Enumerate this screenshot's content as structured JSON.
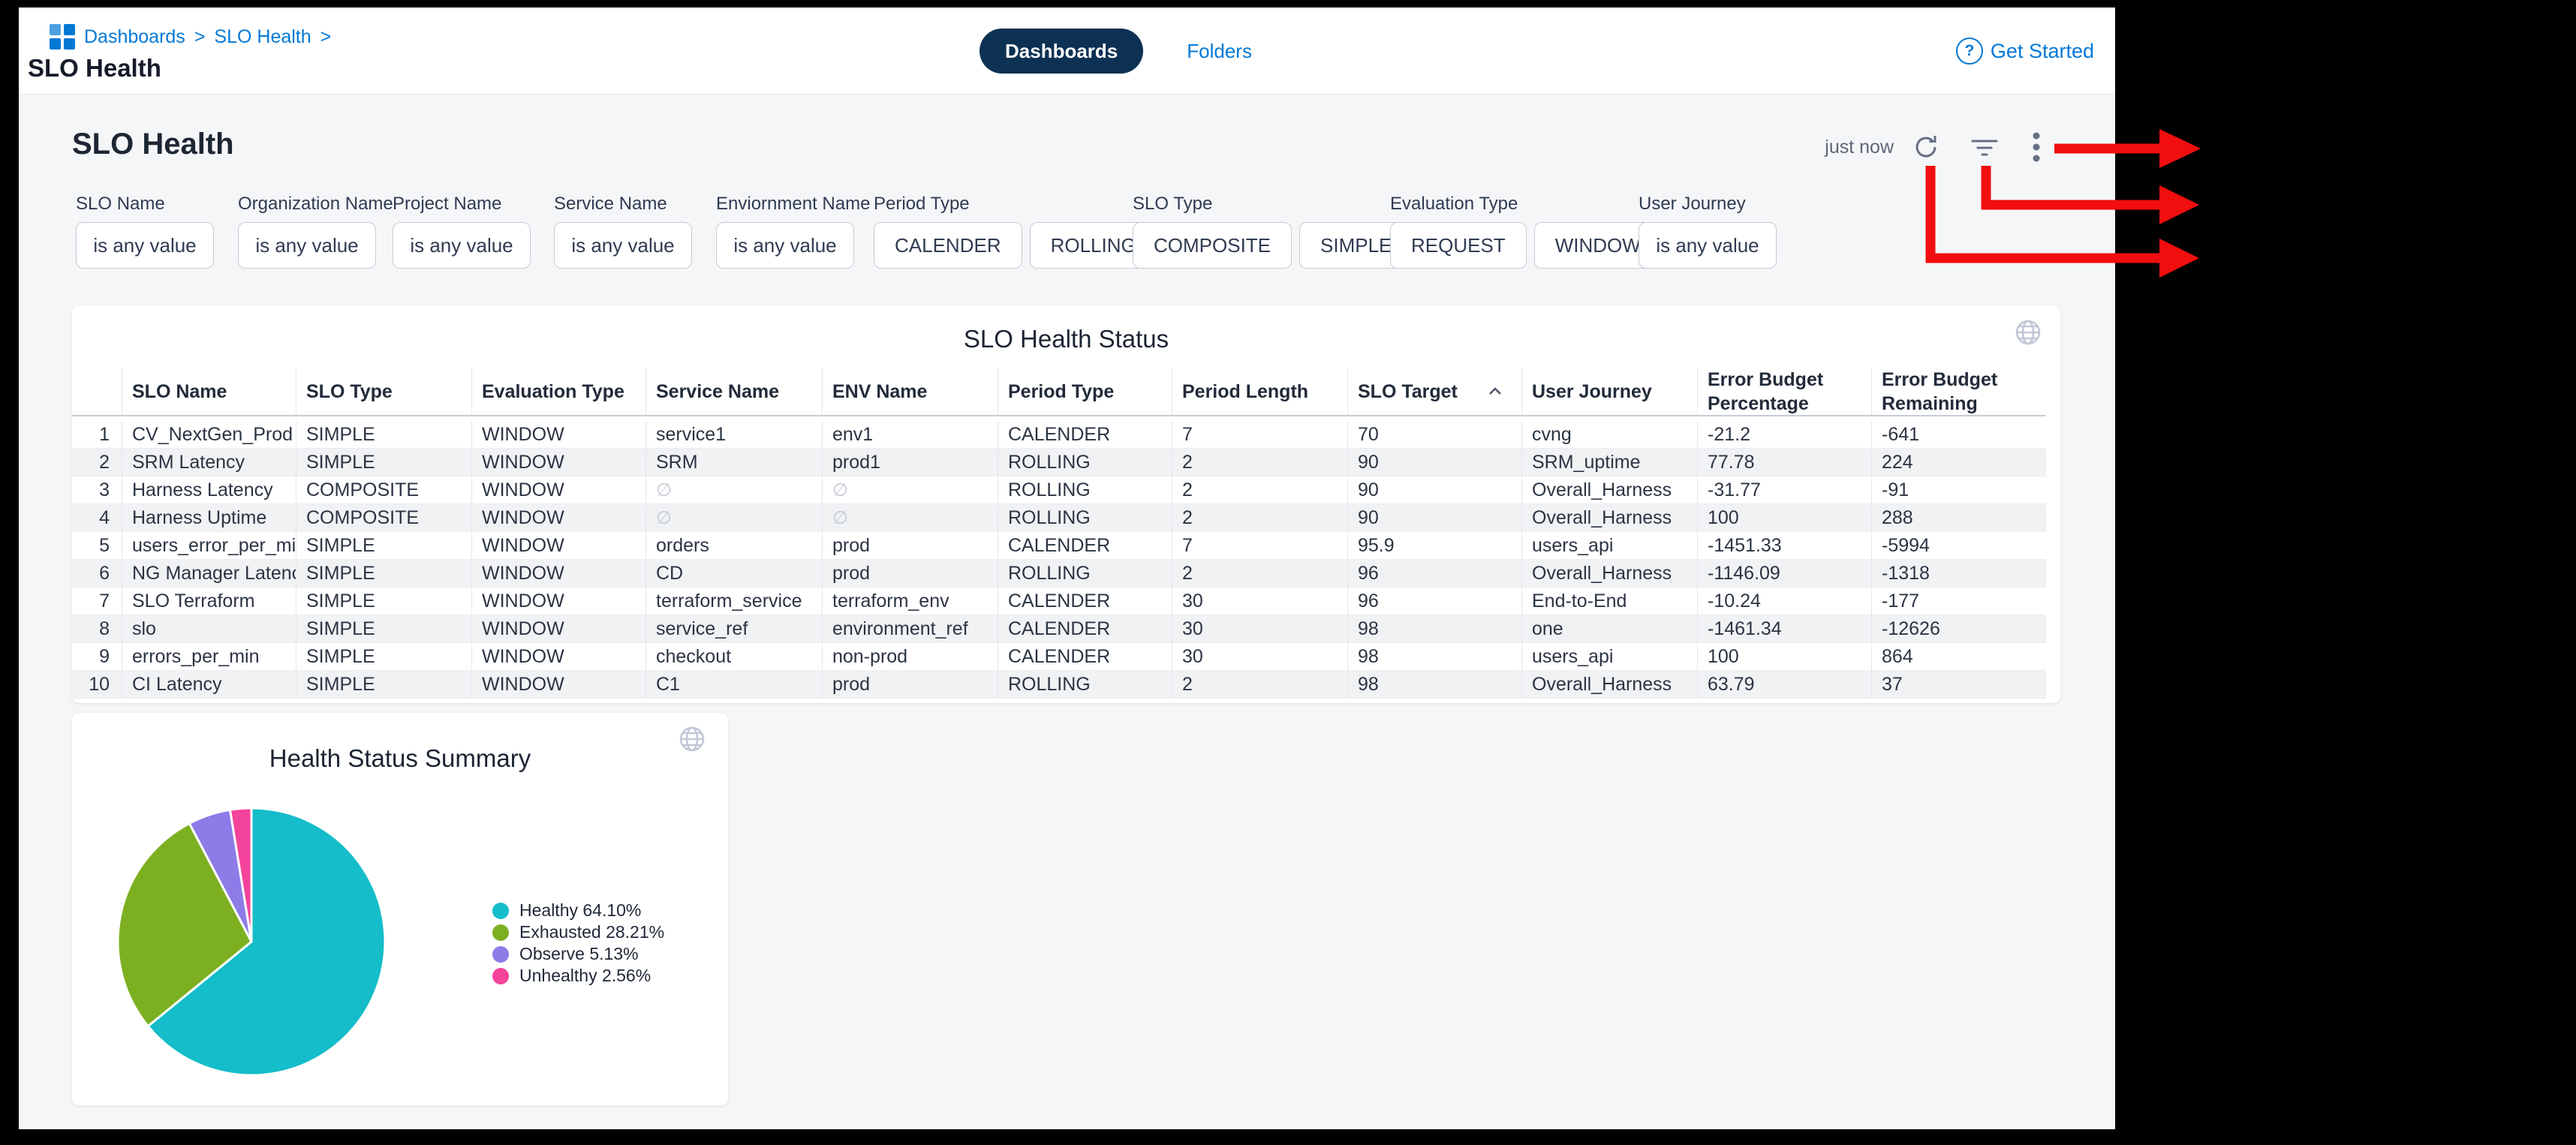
{
  "colors": {
    "accent_blue": "#0278d5",
    "tab_active_bg": "#0d3153",
    "annotation_red": "#f10e0e",
    "zebra_row": "#f1f2f4"
  },
  "topbar": {
    "breadcrumb": [
      "Dashboards",
      "SLO Health"
    ],
    "breadcrumb_separator": ">",
    "page_title": "SLO Health",
    "tabs": [
      {
        "label": "Dashboards",
        "active": true
      },
      {
        "label": "Folders",
        "active": false
      }
    ],
    "help_link": "Get Started"
  },
  "toolbar": {
    "heading": "SLO Health",
    "refreshed": "just now",
    "icons": [
      "refresh-icon",
      "filter-icon",
      "more-menu-icon"
    ]
  },
  "filters": [
    {
      "label": "SLO Name",
      "items": [
        {
          "text": "is any value",
          "kind": "value"
        }
      ]
    },
    {
      "label": "Organization Name",
      "items": [
        {
          "text": "is any value",
          "kind": "value"
        }
      ]
    },
    {
      "label": "Project Name",
      "items": [
        {
          "text": "is any value",
          "kind": "value"
        }
      ]
    },
    {
      "label": "Service Name",
      "items": [
        {
          "text": "is any value",
          "kind": "value"
        }
      ]
    },
    {
      "label": "Enviornment Name",
      "items": [
        {
          "text": "is any value",
          "kind": "value"
        }
      ]
    },
    {
      "label": "Period Type",
      "items": [
        {
          "text": "CALENDER",
          "kind": "option"
        },
        {
          "text": "ROLLING",
          "kind": "option"
        }
      ]
    },
    {
      "label": "SLO Type",
      "items": [
        {
          "text": "COMPOSITE",
          "kind": "option"
        },
        {
          "text": "SIMPLE",
          "kind": "option"
        }
      ]
    },
    {
      "label": "Evaluation Type",
      "items": [
        {
          "text": "REQUEST",
          "kind": "option"
        },
        {
          "text": "WINDOW",
          "kind": "option"
        }
      ]
    },
    {
      "label": "User Journey",
      "items": [
        {
          "text": "is any value",
          "kind": "value"
        }
      ]
    }
  ],
  "table": {
    "title": "SLO Health Status",
    "columns": [
      "SLO Name",
      "SLO Type",
      "Evaluation Type",
      "Service Name",
      "ENV Name",
      "Period Type",
      "Period Length",
      "SLO Target",
      "User Journey",
      "Error Budget\nPercentage",
      "Error Budget\nRemaining"
    ],
    "sort_column": "SLO Target",
    "sort_direction": "asc",
    "null_symbol": "∅",
    "rows": [
      [
        "CV_NextGen_Prod",
        "SIMPLE",
        "WINDOW",
        "service1",
        "env1",
        "CALENDER",
        "7",
        "70",
        "cvng",
        "-21.2",
        "-641"
      ],
      [
        "SRM Latency",
        "SIMPLE",
        "WINDOW",
        "SRM",
        "prod1",
        "ROLLING",
        "2",
        "90",
        "SRM_uptime",
        "77.78",
        "224"
      ],
      [
        "Harness Latency",
        "COMPOSITE",
        "WINDOW",
        "∅",
        "∅",
        "ROLLING",
        "2",
        "90",
        "Overall_Harness",
        "-31.77",
        "-91"
      ],
      [
        "Harness Uptime",
        "COMPOSITE",
        "WINDOW",
        "∅",
        "∅",
        "ROLLING",
        "2",
        "90",
        "Overall_Harness",
        "100",
        "288"
      ],
      [
        "users_error_per_min",
        "SIMPLE",
        "WINDOW",
        "orders",
        "prod",
        "CALENDER",
        "7",
        "95.9",
        "users_api",
        "-1451.33",
        "-5994"
      ],
      [
        "NG Manager Latency",
        "SIMPLE",
        "WINDOW",
        "CD",
        "prod",
        "ROLLING",
        "2",
        "96",
        "Overall_Harness",
        "-1146.09",
        "-1318"
      ],
      [
        "SLO Terraform",
        "SIMPLE",
        "WINDOW",
        "terraform_service",
        "terraform_env",
        "CALENDER",
        "30",
        "96",
        "End-to-End",
        "-10.24",
        "-177"
      ],
      [
        "slo",
        "SIMPLE",
        "WINDOW",
        "service_ref",
        "environment_ref",
        "CALENDER",
        "30",
        "98",
        "one",
        "-1461.34",
        "-12626"
      ],
      [
        "errors_per_min",
        "SIMPLE",
        "WINDOW",
        "checkout",
        "non-prod",
        "CALENDER",
        "30",
        "98",
        "users_api",
        "100",
        "864"
      ],
      [
        "CI Latency",
        "SIMPLE",
        "WINDOW",
        "C1",
        "prod",
        "ROLLING",
        "2",
        "98",
        "Overall_Harness",
        "63.79",
        "37"
      ]
    ]
  },
  "chart_data": {
    "type": "pie",
    "title": "Health Status Summary",
    "labels": [
      "Healthy",
      "Exhausted",
      "Observe",
      "Unhealthy"
    ],
    "values": [
      64.1,
      28.21,
      5.13,
      2.56
    ],
    "colors": [
      "#14bdc9",
      "#7cb021",
      "#8d7be8",
      "#f4439a"
    ],
    "legend_labels": [
      "Healthy 64.10%",
      "Exhausted 28.21%",
      "Observe 5.13%",
      "Unhealthy 2.56%"
    ],
    "legend_position": "right",
    "start_angle_deg": 0,
    "direction": "clockwise"
  }
}
